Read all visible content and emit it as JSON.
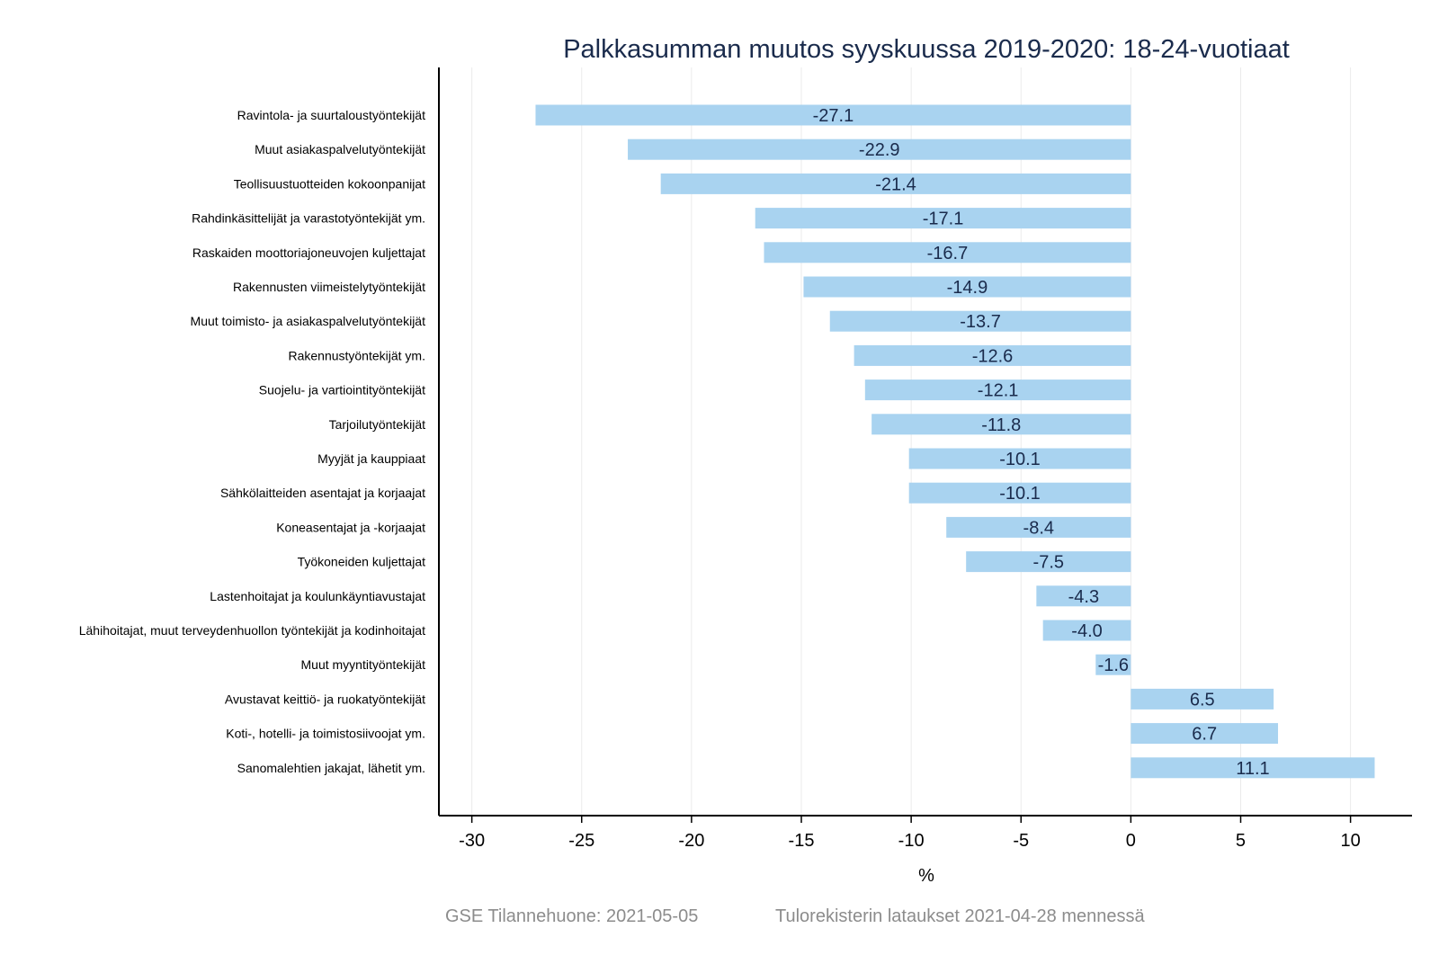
{
  "chart_data": {
    "type": "bar",
    "orientation": "horizontal",
    "title": "Palkkasumman muutos syyskuussa 2019-2020: 18-24-vuotiaat",
    "xlabel": "%",
    "ylabel": "",
    "xlim": [
      -31.5,
      12.8
    ],
    "xticks": [
      -30,
      -25,
      -20,
      -15,
      -10,
      -5,
      0,
      5,
      10
    ],
    "xtick_labels": [
      "-30",
      "-25",
      "-20",
      "-15",
      "-10",
      "-5",
      "0",
      "5",
      "10"
    ],
    "grid": "vertical",
    "categories": [
      "Ravintola- ja suurtaloustyöntekijät",
      "Muut asiakaspalvelutyöntekijät",
      "Teollisuustuotteiden kokoonpanijat",
      "Rahdinkäsittelijät ja varastotyöntekijät ym.",
      "Raskaiden moottoriajoneuvojen kuljettajat",
      "Rakennusten viimeistelytyöntekijät",
      "Muut toimisto- ja asiakaspalvelutyöntekijät",
      "Rakennustyöntekijät ym.",
      "Suojelu- ja vartiointityöntekijät",
      "Tarjoilutyöntekijät",
      "Myyjät ja kauppiaat",
      "Sähkölaitteiden asentajat ja korjaajat",
      "Koneasentajat ja -korjaajat",
      "Työkoneiden kuljettajat",
      "Lastenhoitajat ja koulunkäyntiavustajat",
      "Lähihoitajat, muut terveydenhuollon työntekijät ja kodinhoitajat",
      "Muut myyntityöntekijät",
      "Avustavat keittiö- ja ruokatyöntekijät",
      "Koti-, hotelli- ja toimistosiivoojat ym.",
      "Sanomalehtien jakajat, lähetit ym."
    ],
    "values": [
      -27.1,
      -22.9,
      -21.4,
      -17.1,
      -16.7,
      -14.9,
      -13.7,
      -12.6,
      -12.1,
      -11.8,
      -10.1,
      -10.1,
      -8.4,
      -7.5,
      -4.3,
      -4.0,
      -1.6,
      6.5,
      6.7,
      11.1
    ],
    "value_labels": [
      "-27.1",
      "-22.9",
      "-21.4",
      "-17.1",
      "-16.7",
      "-14.9",
      "-13.7",
      "-12.6",
      "-12.1",
      "-11.8",
      "-10.1",
      "-10.1",
      "-8.4",
      "-7.5",
      "-4.3",
      "-4.0",
      "-1.6",
      "6.5",
      "6.7",
      "11.1"
    ],
    "colors": {
      "bar": "#a9d3f0",
      "title": "#1a2b4c",
      "value_label": "#1a2b4c",
      "axis": "#000000",
      "grid": "#ebebeb",
      "footer": "#8c8c8c"
    }
  },
  "footer": {
    "source": "GSE Tilannehuone: 2021-05-05",
    "note": "Tulorekisterin lataukset 2021-04-28 mennessä"
  }
}
